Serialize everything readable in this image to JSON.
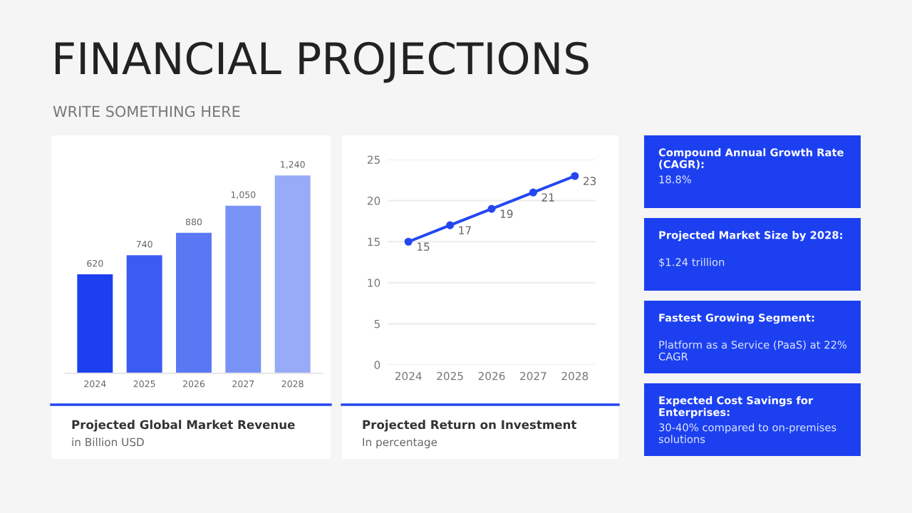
{
  "chart_data": [
    {
      "type": "other",
      "title": "FINANCIAL PROJECTIONS",
      "subtitle": "WRITE SOMETHING HERE"
    },
    {
      "type": "bar",
      "title": "Projected Global Market Revenue",
      "subtitle": "in Billion USD",
      "categories": [
        "2024",
        "2025",
        "2026",
        "2027",
        "2028"
      ],
      "values": [
        620,
        740,
        880,
        1050,
        1240
      ],
      "colors": [
        "#1c40f0",
        "#3b5cf2",
        "#5a78f4",
        "#7a93f6",
        "#97abf8"
      ],
      "value_labels": [
        "620",
        "740",
        "880",
        "1,050",
        "1,240"
      ],
      "tick_labels": "x",
      "grid": false
    },
    {
      "type": "line",
      "title": "Projected Return on Investment",
      "subtitle": "In percentage",
      "categories": [
        "2024",
        "2025",
        "2026",
        "2027",
        "2028"
      ],
      "series": [
        {
          "color": "#2447f0",
          "values": [
            15,
            17,
            19,
            21,
            23
          ]
        }
      ],
      "ylim": [
        0,
        25
      ],
      "yticks": [
        0,
        5,
        10,
        15,
        20,
        25
      ],
      "grid": "y",
      "marker": "circle",
      "line_style": "solid",
      "data_labels": true
    },
    {
      "type": "other",
      "annotations": [
        "Compound Annual Growth Rate (CAGR):",
        "18.8%",
        "Projected Market Size by 2028:",
        "$1.24 trillion",
        "Fastest Growing Segment:",
        "Platform as a Service (PaaS) at 22% CAGR",
        "Expected Cost Savings for Enterprises:",
        "30-40% compared to on-premises solutions"
      ]
    }
  ]
}
